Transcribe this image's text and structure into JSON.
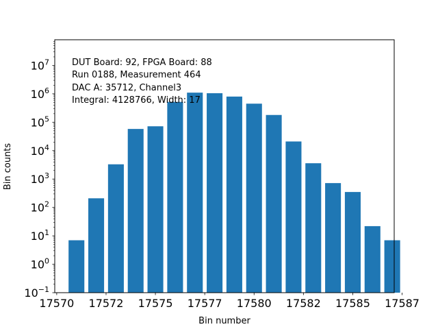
{
  "chart_data": {
    "type": "bar",
    "title": "",
    "xlabel": "Bin number",
    "ylabel": "Bin counts",
    "yscale": "log",
    "ylim": [
      0.1,
      80000000
    ],
    "xlim": [
      17569.9,
      17587.1
    ],
    "bar_color": "#1f77b4",
    "bar_width": 0.8,
    "x": [
      17571,
      17572,
      17573,
      17574,
      17575,
      17576,
      17577,
      17578,
      17579,
      17580,
      17581,
      17582,
      17583,
      17584,
      17585,
      17586,
      17587
    ],
    "values": [
      7,
      210,
      3300,
      58000,
      72000,
      520000,
      1100000,
      1050000,
      800000,
      450000,
      180000,
      21000,
      3600,
      720,
      350,
      22,
      7
    ],
    "xticks": [
      {
        "value": 17570,
        "label": "17570"
      },
      {
        "value": 17572.5,
        "label": "17572"
      },
      {
        "value": 17575,
        "label": "17575"
      },
      {
        "value": 17577.5,
        "label": "17577"
      },
      {
        "value": 17580,
        "label": "17580"
      },
      {
        "value": 17582.5,
        "label": "17582"
      },
      {
        "value": 17585,
        "label": "17585"
      },
      {
        "value": 17587.5,
        "label": "17587"
      }
    ],
    "yticks": [
      {
        "value": 0.1,
        "base": "10",
        "exp": "−1"
      },
      {
        "value": 1,
        "base": "10",
        "exp": "0"
      },
      {
        "value": 10,
        "base": "10",
        "exp": "1"
      },
      {
        "value": 100,
        "base": "10",
        "exp": "2"
      },
      {
        "value": 1000,
        "base": "10",
        "exp": "3"
      },
      {
        "value": 10000,
        "base": "10",
        "exp": "4"
      },
      {
        "value": 100000,
        "base": "10",
        "exp": "5"
      },
      {
        "value": 1000000,
        "base": "10",
        "exp": "6"
      },
      {
        "value": 10000000,
        "base": "10",
        "exp": "7"
      }
    ],
    "annotations": [
      "DUT Board: 92, FPGA Board: 88",
      "Run 0188, Measurement 464",
      "DAC A: 35712, Channel3",
      "Integral: 4128766, Width: 17"
    ]
  }
}
